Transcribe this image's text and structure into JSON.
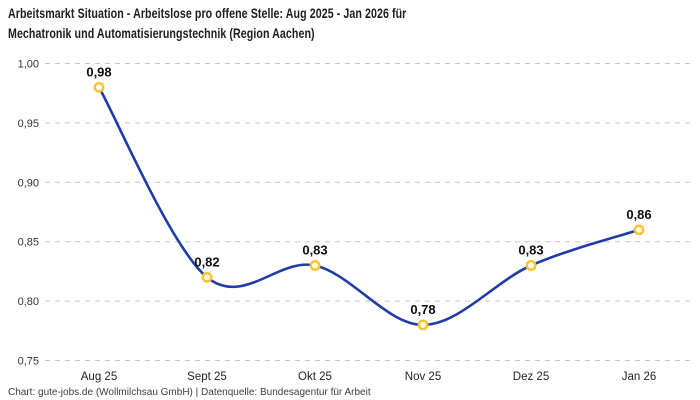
{
  "header": {
    "line1": "Arbeitsmarkt Situation - Arbeitslose pro offene Stelle: Aug 2025 - Jan 2026 für",
    "line2": "Mechatronik und Automatisierungstechnik (Region Aachen)"
  },
  "footer": {
    "text": "Chart: gute-jobs.de (Wollmilchsau GmbH) | Datenquelle: Bundesagentur für Arbeit"
  },
  "chart_data": {
    "type": "line",
    "title": "Arbeitsmarkt Situation - Arbeitslose pro offene Stelle: Aug 2025 - Jan 2026 für Mechatronik und Automatisierungstechnik (Region Aachen)",
    "categories": [
      "Aug 25",
      "Sept 25",
      "Okt 25",
      "Nov 25",
      "Dez 25",
      "Jan 26"
    ],
    "values": [
      0.98,
      0.82,
      0.83,
      0.78,
      0.83,
      0.86
    ],
    "point_labels": [
      "0,98",
      "0,82",
      "0,83",
      "0,78",
      "0,83",
      "0,86"
    ],
    "ylim": [
      0.75,
      1.0
    ],
    "yticks": [
      1.0,
      0.95,
      0.9,
      0.85,
      0.8,
      0.75
    ],
    "ytick_labels": [
      "1,00",
      "0,95",
      "0,90",
      "0,85",
      "0,80",
      "0,75"
    ],
    "xlabel": "",
    "ylabel": "",
    "grid": "horizontal-dashed",
    "legend": "none",
    "smooth": true,
    "line_color": "#1e3ca8",
    "marker_ring_color": "#fcc32f",
    "marker_fill_color": "#ffffff",
    "grid_color": "#c6c6c6",
    "tick_label_color": "#333333",
    "xtick_label_color": "#232323",
    "data_label_color": "#0e0e0e"
  }
}
